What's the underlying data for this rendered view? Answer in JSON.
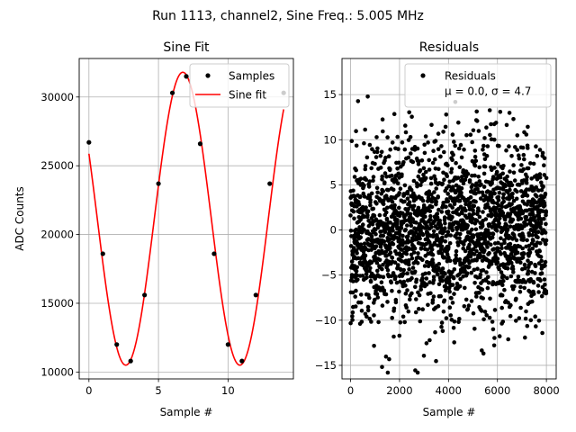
{
  "suptitle": "Run 1113, channel2, Sine Freq.: 5.005 MHz",
  "chart_data": [
    {
      "type": "line",
      "title": "Sine Fit",
      "xlabel": "Sample #",
      "ylabel": "ADC Counts",
      "xlim": [
        -0.7,
        14.7
      ],
      "ylim": [
        9500,
        32800
      ],
      "xticks": [
        0,
        5,
        10
      ],
      "yticks": [
        10000,
        15000,
        20000,
        25000,
        30000
      ],
      "grid": true,
      "legend_position": "top-right",
      "legend": [
        "Samples",
        "Sine fit"
      ],
      "fit": {
        "amplitude": 10650,
        "offset": 21150,
        "period": 8.2,
        "phase_x": 4.7
      },
      "series": [
        {
          "name": "Samples",
          "style": "points",
          "color": "#000000",
          "x": [
            0,
            1,
            2,
            3,
            4,
            5,
            6,
            7,
            8,
            9,
            10,
            11,
            12,
            13,
            14
          ],
          "y": [
            26700,
            18600,
            12000,
            10800,
            15600,
            23700,
            30300,
            31500,
            26600,
            18600,
            12000,
            10800,
            15600,
            23700,
            30300
          ]
        },
        {
          "name": "Sine fit",
          "style": "line",
          "color": "#ff0000"
        }
      ]
    },
    {
      "type": "scatter",
      "title": "Residuals",
      "xlabel": "Sample #",
      "ylabel": "",
      "xlim": [
        -350,
        8400
      ],
      "ylim": [
        -16.5,
        19
      ],
      "xticks": [
        0,
        2000,
        4000,
        6000,
        8000
      ],
      "yticks": [
        -15,
        -10,
        -5,
        0,
        5,
        10,
        15
      ],
      "grid": true,
      "legend_position": "top-right",
      "legend": [
        "Residuals",
        "μ = 0.0, σ = 4.7"
      ],
      "series": [
        {
          "name": "Residuals",
          "color": "#000000",
          "n_points": 8000,
          "mean": 0.0,
          "sigma": 4.7,
          "x_range": [
            0,
            8000
          ]
        }
      ]
    }
  ]
}
